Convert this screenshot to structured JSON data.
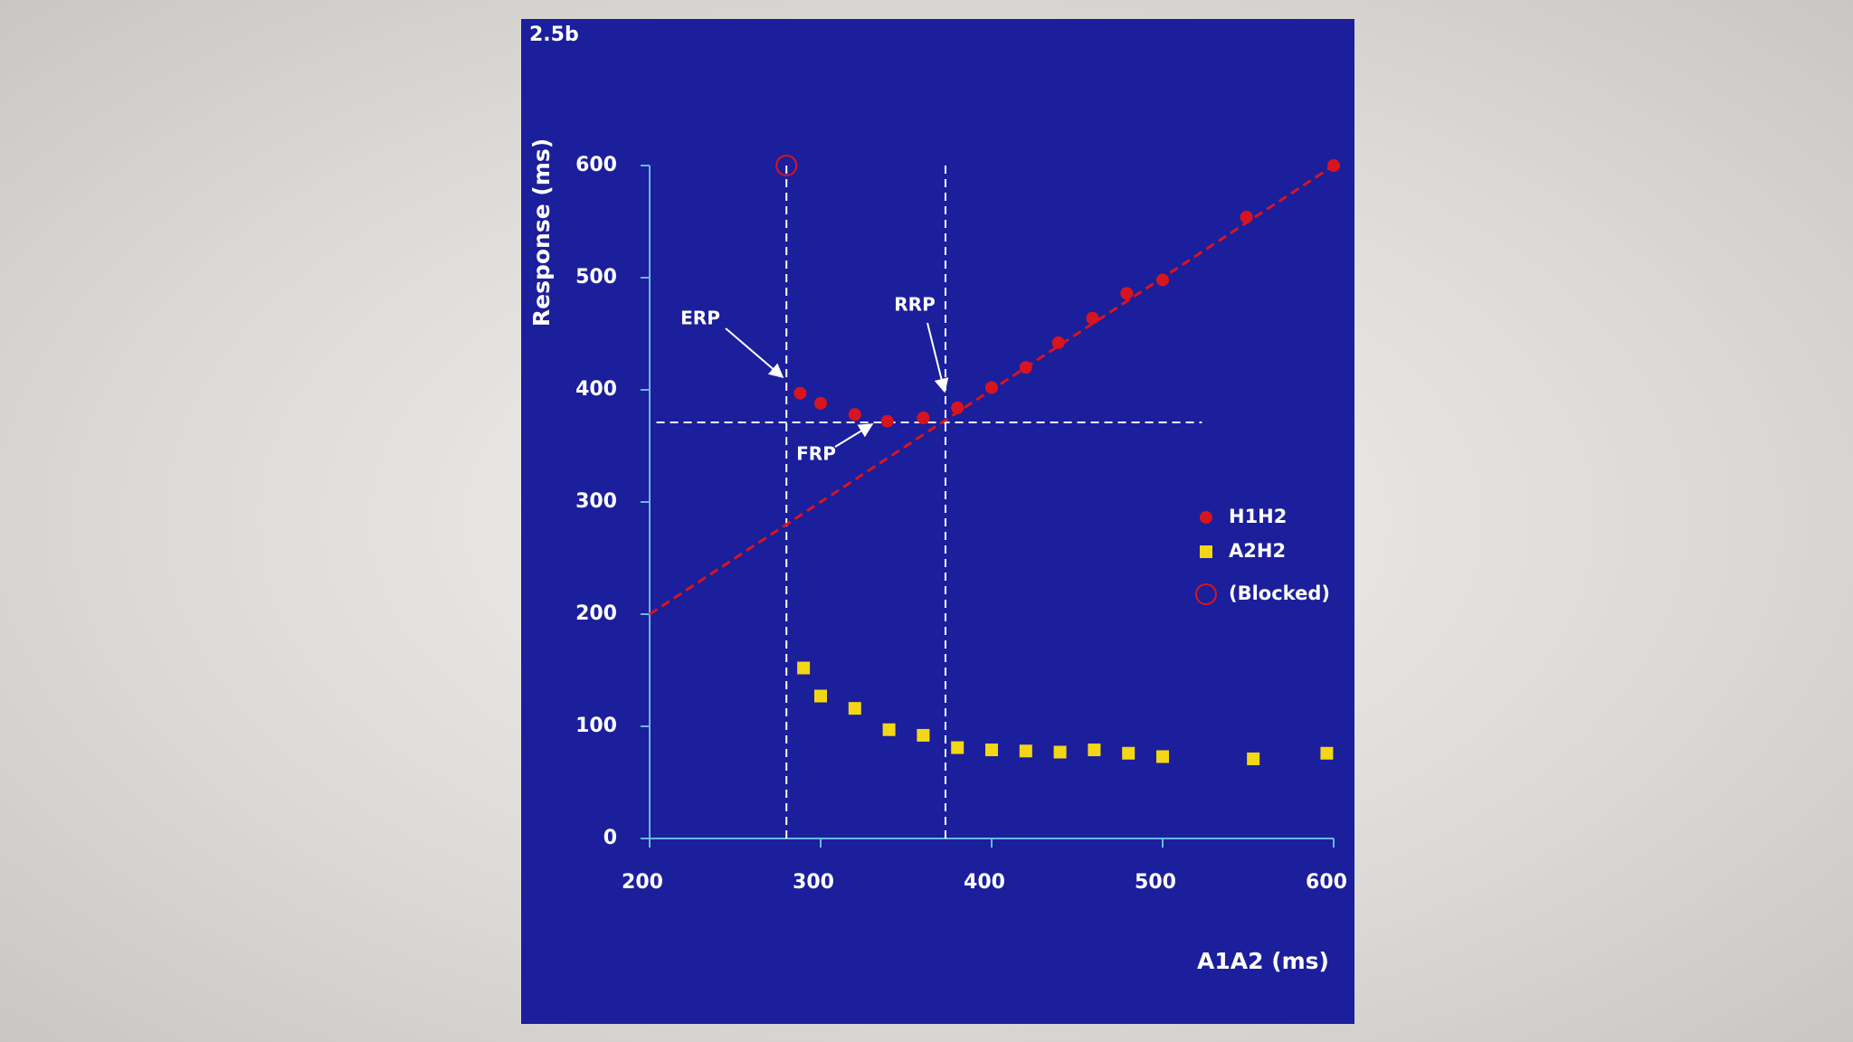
{
  "chart_data": {
    "type": "scatter",
    "figure_label": "2.5b",
    "x_label": "A1A2 (ms)",
    "y_label": "Response (ms)",
    "xlim": [
      200,
      600
    ],
    "xticks": [
      200,
      300,
      400,
      500,
      600
    ],
    "ylim": [
      0,
      600
    ],
    "yticks": [
      0,
      100,
      200,
      300,
      400,
      500,
      600
    ],
    "series": [
      {
        "name": "H1H2",
        "marker": "circle",
        "color": "#d8141f",
        "x": [
          288,
          300,
          320,
          339,
          360,
          380,
          400,
          420,
          439,
          459,
          479,
          500,
          549,
          600
        ],
        "values": [
          397,
          388,
          378,
          372,
          375,
          384,
          402,
          420,
          442,
          464,
          486,
          498,
          554,
          600
        ]
      },
      {
        "name": "A2H2",
        "marker": "square",
        "color": "#f4d714",
        "x": [
          290,
          300,
          320,
          340,
          360,
          380,
          400,
          420,
          440,
          460,
          480,
          500,
          553,
          596
        ],
        "values": [
          152,
          127,
          116,
          97,
          92,
          81,
          79,
          78,
          77,
          79,
          76,
          73,
          71,
          76
        ]
      },
      {
        "name": "(Blocked)",
        "marker": "open-circle",
        "color": "#d8141f",
        "x": [
          280
        ],
        "values": [
          600
        ]
      }
    ],
    "trend_line": {
      "color": "#d8141f",
      "x": [
        200,
        600
      ],
      "values": [
        200,
        600
      ]
    },
    "vlines": [
      280,
      373
    ],
    "hline": {
      "value": 371,
      "x": [
        204,
        523
      ]
    },
    "annotations": [
      "ERP",
      "RRP",
      "FRP"
    ],
    "axis_color": "#6ab8e8"
  }
}
